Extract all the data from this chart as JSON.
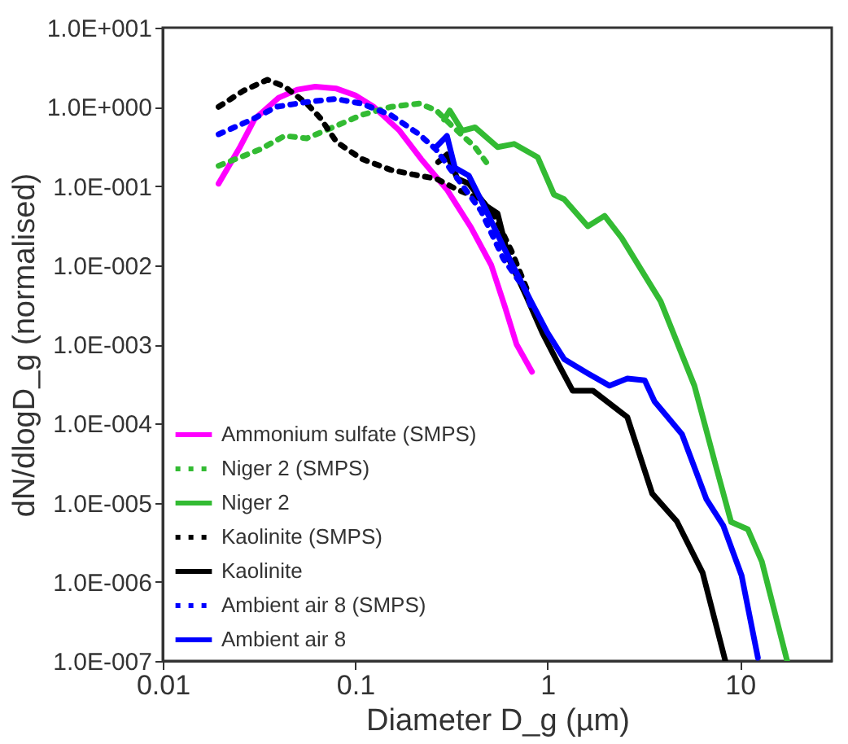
{
  "chart_data": {
    "type": "line",
    "xlabel": "Diameter D_g (µm)",
    "ylabel": "dN/dlogD_g (normalised)",
    "log": "xy",
    "grid": false,
    "legend": "bottom left",
    "marker": "none",
    "xlim": [
      0.01,
      30
    ],
    "xticks": [
      0.01,
      0.1,
      1,
      10
    ],
    "ylim": [
      1e-07,
      10
    ],
    "yticks": [
      {
        "value": 1e-07,
        "label": "1.0E-007"
      },
      {
        "value": 1e-06,
        "label": "1.0E-006"
      },
      {
        "value": 1e-05,
        "label": "1.0E-005"
      },
      {
        "value": 0.0001,
        "label": "1.0E-004"
      },
      {
        "value": 0.001,
        "label": "1.0E-003"
      },
      {
        "value": 0.01,
        "label": "1.0E-002"
      },
      {
        "value": 0.1,
        "label": "1.0E-001"
      },
      {
        "value": 1,
        "label": "1.0E+000"
      },
      {
        "value": 10,
        "label": "1.0E+001"
      }
    ],
    "series": [
      {
        "name": "Ammonium sulfate (SMPS)",
        "color": "#ff00ff",
        "line_style": "solid",
        "x": [
          0.0195,
          0.025,
          0.03,
          0.04,
          0.05,
          0.062,
          0.08,
          0.1,
          0.125,
          0.17,
          0.22,
          0.3,
          0.4,
          0.51,
          0.6,
          0.69,
          0.83
        ],
        "values": [
          0.107,
          0.3,
          0.7,
          1.3,
          1.65,
          1.8,
          1.7,
          1.4,
          1.0,
          0.5,
          0.22,
          0.09,
          0.03,
          0.01,
          0.003,
          0.001,
          0.00045
        ]
      },
      {
        "name": "Niger 2 (SMPS)",
        "color": "#33bb33",
        "line_style": "dotted",
        "x": [
          0.0195,
          0.032,
          0.043,
          0.056,
          0.079,
          0.108,
          0.153,
          0.215,
          0.263,
          0.32,
          0.42,
          0.48
        ],
        "values": [
          0.18,
          0.29,
          0.43,
          0.4,
          0.57,
          0.79,
          1.0,
          1.1,
          0.91,
          0.57,
          0.31,
          0.2
        ]
      },
      {
        "name": "Niger 2",
        "color": "#33bb33",
        "line_style": "solid",
        "x": [
          0.29,
          0.31,
          0.36,
          0.42,
          0.55,
          0.67,
          0.89,
          1.08,
          1.22,
          1.62,
          1.98,
          2.43,
          3.87,
          5.8,
          7.5,
          9.0,
          11.0,
          13.0,
          17.6
        ],
        "values": [
          0.69,
          0.9,
          0.5,
          0.55,
          0.31,
          0.34,
          0.23,
          0.078,
          0.068,
          0.031,
          0.042,
          0.022,
          0.0035,
          0.0003,
          2.9e-05,
          5.7e-06,
          4.6e-06,
          1.8e-06,
          1e-07
        ]
      },
      {
        "name": "Kaolinite (SMPS)",
        "color": "#000000",
        "line_style": "dotted",
        "x": [
          0.0195,
          0.0263,
          0.035,
          0.043,
          0.056,
          0.066,
          0.08,
          0.108,
          0.153,
          0.215,
          0.263,
          0.34,
          0.45,
          0.53,
          0.65,
          0.78
        ],
        "values": [
          1.0,
          1.6,
          2.2,
          1.8,
          1.1,
          0.72,
          0.36,
          0.22,
          0.16,
          0.135,
          0.124,
          0.09,
          0.068,
          0.042,
          0.015,
          0.005
        ]
      },
      {
        "name": "Kaolinite",
        "color": "#000000",
        "line_style": "solid",
        "x": [
          0.27,
          0.3,
          0.34,
          0.39,
          0.48,
          0.55,
          0.63,
          0.77,
          0.94,
          1.15,
          1.35,
          1.72,
          2.6,
          3.5,
          4.7,
          6.4,
          8.4
        ],
        "values": [
          0.2,
          0.25,
          0.124,
          0.107,
          0.056,
          0.045,
          0.012,
          0.0042,
          0.0014,
          0.00054,
          0.00026,
          0.00026,
          0.00012,
          1.3e-05,
          5.8e-06,
          1.3e-06,
          1e-07
        ]
      },
      {
        "name": "Ambient air 8 (SMPS)",
        "color": "#0000ff",
        "line_style": "dotted",
        "x": [
          0.0195,
          0.029,
          0.039,
          0.056,
          0.079,
          0.108,
          0.153,
          0.215,
          0.263,
          0.34,
          0.45,
          0.59,
          0.77,
          0.82
        ],
        "values": [
          0.45,
          0.69,
          1.0,
          1.15,
          1.26,
          1.1,
          0.79,
          0.45,
          0.29,
          0.124,
          0.049,
          0.012,
          0.0048,
          0.003
        ]
      },
      {
        "name": "Ambient air 8",
        "color": "#0000ff",
        "line_style": "solid",
        "x": [
          0.263,
          0.3,
          0.33,
          0.39,
          0.48,
          0.59,
          0.82,
          1.0,
          1.22,
          1.62,
          2.1,
          2.6,
          3.2,
          3.6,
          5.0,
          6.7,
          8.2,
          10.2,
          12.4
        ],
        "values": [
          0.31,
          0.43,
          0.17,
          0.135,
          0.049,
          0.017,
          0.0035,
          0.0014,
          0.00065,
          0.00043,
          0.0003,
          0.00037,
          0.00035,
          0.00019,
          7.3e-05,
          1.1e-05,
          5.1e-06,
          1.2e-06,
          1.1e-07
        ]
      }
    ]
  }
}
